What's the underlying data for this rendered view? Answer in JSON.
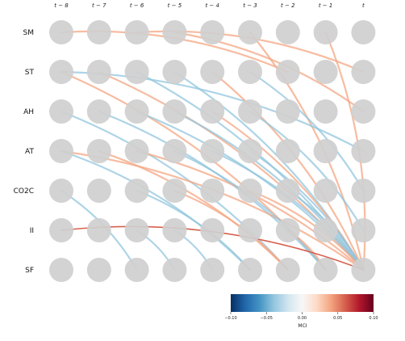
{
  "time_labels": [
    "t − 8",
    "t − 7",
    "t − 6",
    "t − 5",
    "t − 4",
    "t − 3",
    "t − 2",
    "t − 1",
    "t"
  ],
  "variables": [
    "SM",
    "ST",
    "AH",
    "AT",
    "CO2C",
    "II",
    "SF"
  ],
  "colors": {
    "node": "#cfcfcf",
    "strong_positive": "#d6604d",
    "positive": "#f4a582",
    "negative": "#92c5de"
  },
  "links": [
    {
      "from_var": "SM",
      "from_lag": 0,
      "to_var": "ST",
      "to_lag": 6,
      "value": 0.02
    },
    {
      "from_var": "SM",
      "from_lag": 2,
      "to_var": "ST",
      "to_lag": 8,
      "value": 0.02
    },
    {
      "from_var": "SM",
      "from_lag": 3,
      "to_var": "AH",
      "to_lag": 8,
      "value": 0.02
    },
    {
      "from_var": "SM",
      "from_lag": 5,
      "to_var": "SF",
      "to_lag": 8,
      "value": 0.02
    },
    {
      "from_var": "SM",
      "from_lag": 7,
      "to_var": "SF",
      "to_lag": 8,
      "value": 0.02
    },
    {
      "from_var": "ST",
      "from_lag": 0,
      "to_var": "SF",
      "to_lag": 7,
      "value": 0.02
    },
    {
      "from_var": "ST",
      "from_lag": 0,
      "to_var": "AT",
      "to_lag": 8,
      "value": -0.02
    },
    {
      "from_var": "ST",
      "from_lag": 1,
      "to_var": "SF",
      "to_lag": 8,
      "value": 0.02
    },
    {
      "from_var": "ST",
      "from_lag": 2,
      "to_var": "SF",
      "to_lag": 8,
      "value": -0.02
    },
    {
      "from_var": "ST",
      "from_lag": 3,
      "to_var": "SF",
      "to_lag": 8,
      "value": -0.02
    },
    {
      "from_var": "ST",
      "from_lag": 4,
      "to_var": "SF",
      "to_lag": 8,
      "value": 0.02
    },
    {
      "from_var": "ST",
      "from_lag": 5,
      "to_var": "CO2C",
      "to_lag": 8,
      "value": -0.02
    },
    {
      "from_var": "AH",
      "from_lag": 0,
      "to_var": "SF",
      "to_lag": 6,
      "value": -0.02
    },
    {
      "from_var": "AH",
      "from_lag": 1,
      "to_var": "SF",
      "to_lag": 7,
      "value": -0.02
    },
    {
      "from_var": "AH",
      "from_lag": 2,
      "to_var": "SF",
      "to_lag": 8,
      "value": -0.02
    },
    {
      "from_var": "AH",
      "from_lag": 3,
      "to_var": "SF",
      "to_lag": 8,
      "value": -0.02
    },
    {
      "from_var": "AH",
      "from_lag": 4,
      "to_var": "SF",
      "to_lag": 8,
      "value": 0.02
    },
    {
      "from_var": "AH",
      "from_lag": 5,
      "to_var": "II",
      "to_lag": 8,
      "value": -0.02
    },
    {
      "from_var": "AT",
      "from_lag": 0,
      "to_var": "SF",
      "to_lag": 5,
      "value": -0.02
    },
    {
      "from_var": "AT",
      "from_lag": 0,
      "to_var": "SF",
      "to_lag": 8,
      "value": 0.02
    },
    {
      "from_var": "AT",
      "from_lag": 1,
      "to_var": "SF",
      "to_lag": 6,
      "value": 0.02
    },
    {
      "from_var": "AT",
      "from_lag": 2,
      "to_var": "SF",
      "to_lag": 8,
      "value": 0.02
    },
    {
      "from_var": "AT",
      "from_lag": 3,
      "to_var": "SF",
      "to_lag": 7,
      "value": -0.02
    },
    {
      "from_var": "AT",
      "from_lag": 4,
      "to_var": "SF",
      "to_lag": 8,
      "value": -0.02
    },
    {
      "from_var": "AT",
      "from_lag": 5,
      "to_var": "SF",
      "to_lag": 8,
      "value": -0.02
    },
    {
      "from_var": "CO2C",
      "from_lag": 0,
      "to_var": "SF",
      "to_lag": 2,
      "value": -0.02
    },
    {
      "from_var": "CO2C",
      "from_lag": 2,
      "to_var": "SF",
      "to_lag": 5,
      "value": -0.02
    },
    {
      "from_var": "CO2C",
      "from_lag": 3,
      "to_var": "SF",
      "to_lag": 6,
      "value": 0.02
    },
    {
      "from_var": "CO2C",
      "from_lag": 5,
      "to_var": "SF",
      "to_lag": 8,
      "value": 0.02
    },
    {
      "from_var": "CO2C",
      "from_lag": 6,
      "to_var": "SF",
      "to_lag": 8,
      "value": -0.02
    },
    {
      "from_var": "II",
      "from_lag": 0,
      "to_var": "SF",
      "to_lag": 8,
      "value": 0.06
    },
    {
      "from_var": "II",
      "from_lag": 2,
      "to_var": "SF",
      "to_lag": 3,
      "value": -0.02
    },
    {
      "from_var": "II",
      "from_lag": 3,
      "to_var": "SF",
      "to_lag": 4,
      "value": -0.02
    },
    {
      "from_var": "II",
      "from_lag": 6,
      "to_var": "SF",
      "to_lag": 7,
      "value": 0.02
    }
  ],
  "colorbar": {
    "label": "MCI",
    "ticks": [
      "−0.10",
      "−0.05",
      "0.00",
      "0.05",
      "0.10"
    ],
    "min": -0.1,
    "max": 0.1
  }
}
